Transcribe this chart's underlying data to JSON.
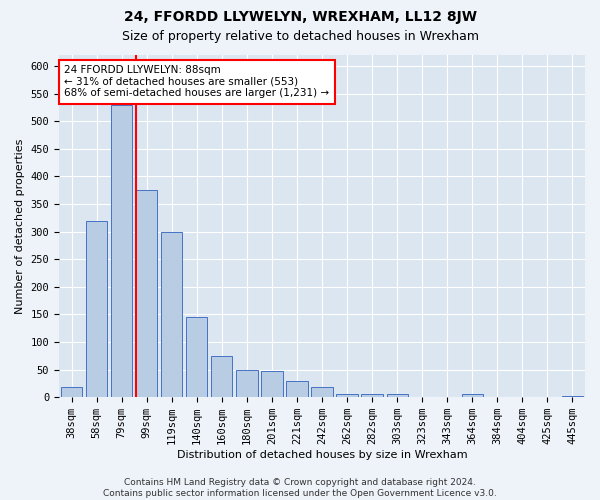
{
  "title": "24, FFORDD LLYWELYN, WREXHAM, LL12 8JW",
  "subtitle": "Size of property relative to detached houses in Wrexham",
  "xlabel": "Distribution of detached houses by size in Wrexham",
  "ylabel": "Number of detached properties",
  "categories": [
    "38sqm",
    "58sqm",
    "79sqm",
    "99sqm",
    "119sqm",
    "140sqm",
    "160sqm",
    "180sqm",
    "201sqm",
    "221sqm",
    "242sqm",
    "262sqm",
    "282sqm",
    "303sqm",
    "323sqm",
    "343sqm",
    "364sqm",
    "384sqm",
    "404sqm",
    "425sqm",
    "445sqm"
  ],
  "values": [
    18,
    320,
    530,
    375,
    300,
    145,
    75,
    50,
    48,
    30,
    18,
    5,
    5,
    5,
    0,
    0,
    5,
    0,
    0,
    0,
    3
  ],
  "bar_color": "#b8cce4",
  "bar_edge_color": "#4472c4",
  "red_line_bar_index": 3,
  "annotation_text": "24 FFORDD LLYWELYN: 88sqm\n← 31% of detached houses are smaller (553)\n68% of semi-detached houses are larger (1,231) →",
  "annotation_box_color": "white",
  "annotation_box_edge_color": "red",
  "ylim": [
    0,
    620
  ],
  "yticks": [
    0,
    50,
    100,
    150,
    200,
    250,
    300,
    350,
    400,
    450,
    500,
    550,
    600
  ],
  "footer_line1": "Contains HM Land Registry data © Crown copyright and database right 2024.",
  "footer_line2": "Contains public sector information licensed under the Open Government Licence v3.0.",
  "background_color": "#eef2f9",
  "plot_background_color": "#dce6f1",
  "grid_color": "white",
  "title_fontsize": 10,
  "subtitle_fontsize": 9,
  "axis_label_fontsize": 8,
  "tick_fontsize": 7.5,
  "footer_fontsize": 6.5
}
